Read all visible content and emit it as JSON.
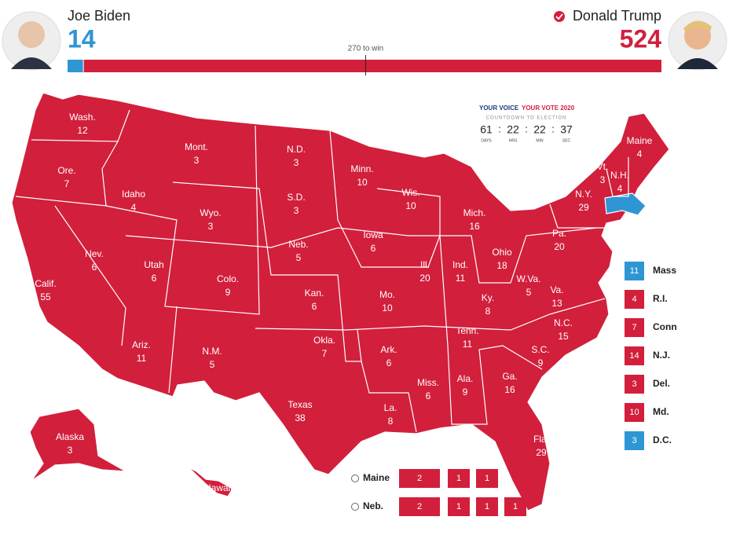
{
  "candidates": [
    {
      "name": "Joe Biden",
      "votes": 14,
      "color": "#2f96d4"
    },
    {
      "name": "Donald Trump",
      "votes": 524,
      "color": "#d21f3c"
    }
  ],
  "threshold": {
    "value": 270,
    "label": "270 to win"
  },
  "countdown": {
    "brand_left": "YOUR VOICE",
    "brand_right": "YOUR VOTE 2020",
    "subtitle": "COUNTDOWN TO ELECTION",
    "separator": ":",
    "units": [
      {
        "value": 61,
        "label": "DAYS"
      },
      {
        "value": 22,
        "label": "HRS"
      },
      {
        "value": 22,
        "label": "MIN"
      },
      {
        "value": 37,
        "label": "SEC"
      }
    ]
  },
  "states": [
    {
      "name": "Wash.",
      "votes": 12,
      "color": "#d21f3c"
    },
    {
      "name": "Ore.",
      "votes": 7,
      "color": "#d21f3c"
    },
    {
      "name": "Calif.",
      "votes": 55,
      "color": "#d21f3c"
    },
    {
      "name": "Nev.",
      "votes": 6,
      "color": "#d21f3c"
    },
    {
      "name": "Idaho",
      "votes": 4,
      "color": "#d21f3c"
    },
    {
      "name": "Mont.",
      "votes": 3,
      "color": "#d21f3c"
    },
    {
      "name": "Wyo.",
      "votes": 3,
      "color": "#d21f3c"
    },
    {
      "name": "Utah",
      "votes": 6,
      "color": "#d21f3c"
    },
    {
      "name": "Colo.",
      "votes": 9,
      "color": "#d21f3c"
    },
    {
      "name": "Ariz.",
      "votes": 11,
      "color": "#d21f3c"
    },
    {
      "name": "N.M.",
      "votes": 5,
      "color": "#d21f3c"
    },
    {
      "name": "N.D.",
      "votes": 3,
      "color": "#d21f3c"
    },
    {
      "name": "S.D.",
      "votes": 3,
      "color": "#d21f3c"
    },
    {
      "name": "Neb.",
      "votes": 5,
      "color": "#d21f3c"
    },
    {
      "name": "Kan.",
      "votes": 6,
      "color": "#d21f3c"
    },
    {
      "name": "Okla.",
      "votes": 7,
      "color": "#d21f3c"
    },
    {
      "name": "Texas",
      "votes": 38,
      "color": "#d21f3c"
    },
    {
      "name": "Minn.",
      "votes": 10,
      "color": "#d21f3c"
    },
    {
      "name": "Iowa",
      "votes": 6,
      "color": "#d21f3c"
    },
    {
      "name": "Mo.",
      "votes": 10,
      "color": "#d21f3c"
    },
    {
      "name": "Ark.",
      "votes": 6,
      "color": "#d21f3c"
    },
    {
      "name": "La.",
      "votes": 8,
      "color": "#d21f3c"
    },
    {
      "name": "Wis.",
      "votes": 10,
      "color": "#d21f3c"
    },
    {
      "name": "Ill.",
      "votes": 20,
      "color": "#d21f3c"
    },
    {
      "name": "Mich.",
      "votes": 16,
      "color": "#d21f3c"
    },
    {
      "name": "Ind.",
      "votes": 11,
      "color": "#d21f3c"
    },
    {
      "name": "Ohio",
      "votes": 18,
      "color": "#d21f3c"
    },
    {
      "name": "Ky.",
      "votes": 8,
      "color": "#d21f3c"
    },
    {
      "name": "Tenn.",
      "votes": 11,
      "color": "#d21f3c"
    },
    {
      "name": "Miss.",
      "votes": 6,
      "color": "#d21f3c"
    },
    {
      "name": "Ala.",
      "votes": 9,
      "color": "#d21f3c"
    },
    {
      "name": "Ga.",
      "votes": 16,
      "color": "#d21f3c"
    },
    {
      "name": "Fla.",
      "votes": 29,
      "color": "#d21f3c"
    },
    {
      "name": "S.C.",
      "votes": 9,
      "color": "#d21f3c"
    },
    {
      "name": "N.C.",
      "votes": 15,
      "color": "#d21f3c"
    },
    {
      "name": "Va.",
      "votes": 13,
      "color": "#d21f3c"
    },
    {
      "name": "W.Va.",
      "votes": 5,
      "color": "#d21f3c"
    },
    {
      "name": "Pa.",
      "votes": 20,
      "color": "#d21f3c"
    },
    {
      "name": "N.Y.",
      "votes": 29,
      "color": "#d21f3c"
    },
    {
      "name": "Vt.",
      "votes": 3,
      "color": "#d21f3c"
    },
    {
      "name": "N.H.",
      "votes": 4,
      "color": "#d21f3c"
    },
    {
      "name": "Maine",
      "votes": 4,
      "color": "#d21f3c"
    },
    {
      "name": "Alaska",
      "votes": 3,
      "color": "#d21f3c"
    },
    {
      "name": "Hawaii"
    }
  ],
  "side_list": [
    {
      "name": "Mass",
      "votes": 11,
      "color": "#2f96d4"
    },
    {
      "name": "R.I.",
      "votes": 4,
      "color": "#d21f3c"
    },
    {
      "name": "Conn",
      "votes": 7,
      "color": "#d21f3c"
    },
    {
      "name": "N.J.",
      "votes": 14,
      "color": "#d21f3c"
    },
    {
      "name": "Del.",
      "votes": 3,
      "color": "#d21f3c"
    },
    {
      "name": "Md.",
      "votes": 10,
      "color": "#d21f3c"
    },
    {
      "name": "D.C.",
      "votes": 3,
      "color": "#2f96d4"
    }
  ],
  "districts": [
    {
      "name": "Maine",
      "votes": [
        2,
        1,
        1
      ],
      "color": "#d21f3c"
    },
    {
      "name": "Neb.",
      "votes": [
        2,
        1,
        1,
        1
      ],
      "color": "#d21f3c"
    }
  ]
}
